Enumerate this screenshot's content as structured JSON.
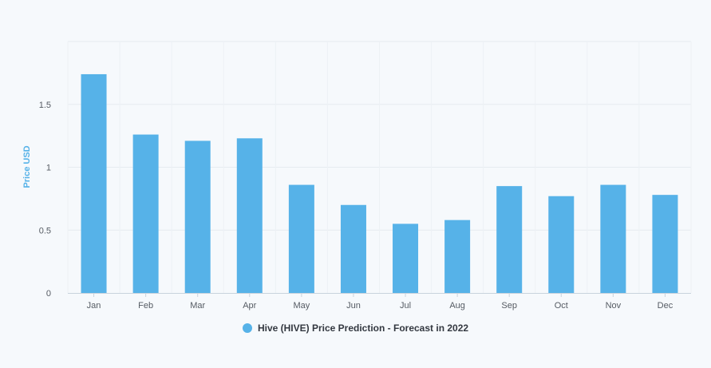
{
  "chart_data": {
    "type": "bar",
    "title": "",
    "xlabel": "",
    "ylabel": "Price USD",
    "categories": [
      "Jan",
      "Feb",
      "Mar",
      "Apr",
      "May",
      "Jun",
      "Jul",
      "Aug",
      "Sep",
      "Oct",
      "Nov",
      "Dec"
    ],
    "series": [
      {
        "name": "Hive (HIVE) Price Prediction - Forecast in 2022",
        "color": "#56b2e8",
        "values": [
          1.74,
          1.26,
          1.21,
          1.23,
          0.86,
          0.7,
          0.55,
          0.58,
          0.85,
          0.77,
          0.86,
          0.78
        ]
      }
    ],
    "y_ticks": [
      "0",
      "0.5",
      "1",
      "1.5"
    ],
    "ylim": [
      0,
      2
    ],
    "grid": true,
    "legend_position": "bottom-center"
  }
}
